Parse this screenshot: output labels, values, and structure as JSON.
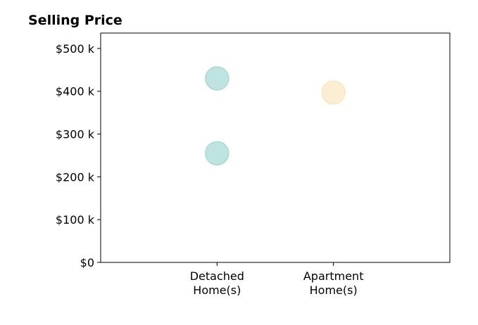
{
  "chart_data": {
    "type": "scatter",
    "title": "Selling Price",
    "xlabel": "",
    "ylabel": "",
    "categories": [
      [
        "Detached",
        "Home(s)"
      ],
      [
        "Apartment",
        "Home(s)"
      ]
    ],
    "xlim": [
      -1,
      2
    ],
    "ylim": [
      0,
      536000
    ],
    "y_ticks": [
      {
        "value": 0,
        "label": "$0"
      },
      {
        "value": 100000,
        "label": "$100 k"
      },
      {
        "value": 200000,
        "label": "$200 k"
      },
      {
        "value": 300000,
        "label": "$300 k"
      },
      {
        "value": 400000,
        "label": "$400 k"
      },
      {
        "value": 500000,
        "label": "$500 k"
      }
    ],
    "grid": false,
    "points": [
      {
        "category": "Detached Home(s)",
        "x": 0,
        "y": 430000,
        "color": "#a8dad5"
      },
      {
        "category": "Detached Home(s)",
        "x": 0,
        "y": 255000,
        "color": "#a8dad5"
      },
      {
        "category": "Apartment Home(s)",
        "x": 1,
        "y": 397000,
        "color": "#f9e8c4"
      }
    ]
  }
}
